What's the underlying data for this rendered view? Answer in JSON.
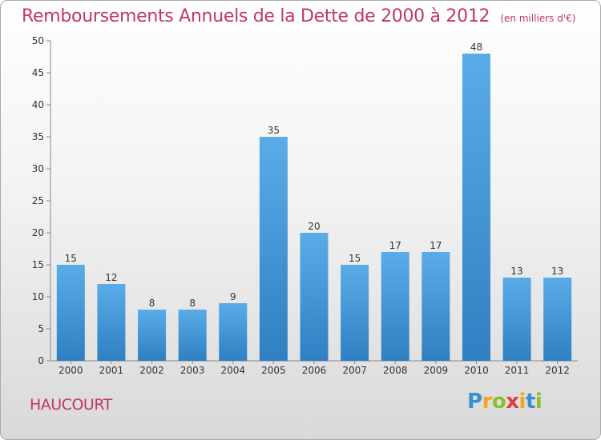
{
  "title": "Remboursements Annuels de la Dette de 2000 à 2012",
  "subtitle": "(en milliers d'€)",
  "commune": "HAUCOURT",
  "logo": {
    "letters": [
      "P",
      "r",
      "o",
      "x",
      "i",
      "t",
      "i"
    ]
  },
  "colors": {
    "title": "#c0366d",
    "bar_light": "#5aace8",
    "bar_dark": "#2f7fc2"
  },
  "chart_data": {
    "type": "bar",
    "categories": [
      "2000",
      "2001",
      "2002",
      "2003",
      "2004",
      "2005",
      "2006",
      "2007",
      "2008",
      "2009",
      "2010",
      "2011",
      "2012"
    ],
    "values": [
      15,
      12,
      8,
      8,
      9,
      35,
      20,
      15,
      17,
      17,
      48,
      13,
      13
    ],
    "ylim": [
      0,
      50
    ],
    "yticks": [
      0,
      5,
      10,
      15,
      20,
      25,
      30,
      35,
      40,
      45,
      50
    ],
    "grid": false,
    "data_labels": true
  }
}
